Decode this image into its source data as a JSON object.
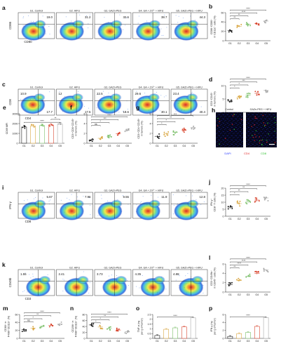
{
  "groups": [
    "G1. Control",
    "G2. HIFU",
    "G3. GAZn-PEG",
    "G4. GA + Zn²⁺ + HIFU",
    "G5. GAZn-PEG + HIFU"
  ],
  "short_groups": [
    "G1",
    "G2",
    "G3",
    "G4",
    "G5"
  ],
  "colors": {
    "group": [
      "#1a1a1a",
      "#d9a640",
      "#7cbf6a",
      "#d8452e",
      "#a8a8a8"
    ],
    "density": [
      "#1c2aa8",
      "#2f6de0",
      "#3fb6e6",
      "#7fe07a",
      "#f2e640",
      "#f08a2a",
      "#d62020"
    ]
  },
  "flow_rows": [
    {
      "label": "a",
      "xaxis": "CD80",
      "yaxis": "CD86",
      "values": [
        "19.0",
        "31.2",
        "32.6",
        "38.7",
        "44.3"
      ],
      "pos": "tr"
    },
    {
      "label": "c",
      "xaxis": "CD4",
      "yaxis": "CD8",
      "values": [
        [
          "10.9",
          "17.7"
        ],
        [
          "12",
          "17.5"
        ],
        [
          "22.5",
          "18.6"
        ],
        [
          "29.6",
          "30.1"
        ],
        [
          "23.4",
          "40.4"
        ]
      ],
      "pos": "tlbr"
    },
    {
      "label": "i",
      "xaxis": "CD8",
      "yaxis": "IFN-γ",
      "values": [
        "5.67",
        "7.96",
        "9.55",
        "11.9",
        "12.8"
      ],
      "pos": "tr"
    },
    {
      "label": "k",
      "xaxis": "CD3",
      "yaxis": "CD49b",
      "values": [
        "1.55",
        "2.41",
        "3.73",
        "4.35",
        "4.88"
      ],
      "pos": "tl"
    }
  ],
  "panel_h": {
    "label": "h",
    "titles": [
      "Control",
      "GAZn-PEG + HIFU"
    ],
    "legend": [
      {
        "text": "DAPI",
        "color": "#2a3cff"
      },
      {
        "text": "CD4",
        "color": "#e02020"
      },
      {
        "text": "CD8",
        "color": "#30c030"
      }
    ]
  },
  "chart_data": [
    {
      "label": "b",
      "type": "scatter",
      "categories": [
        "G1",
        "G2",
        "G3",
        "G4",
        "G5"
      ],
      "means": [
        22,
        31,
        35,
        37,
        42
      ],
      "spread": 4,
      "ylabel": [
        "CD86⁺CD80⁺",
        "in CD11c⁺ cells (%)"
      ],
      "yticks": [
        0,
        20,
        40,
        60
      ],
      "ylim": [
        0,
        60
      ],
      "sig": [
        {
          "a": 1,
          "b": 2,
          "text": "**"
        },
        {
          "a": 1,
          "b": 3,
          "text": "**"
        },
        {
          "a": 1,
          "b": 4,
          "text": "****"
        },
        {
          "a": 1,
          "b": 5,
          "text": "****"
        }
      ]
    },
    {
      "label": "d",
      "type": "scatter",
      "categories": [
        "G1",
        "G2",
        "G3",
        "G4",
        "G5"
      ],
      "means": [
        4.2,
        5.6,
        6.4,
        7.1,
        8.2
      ],
      "spread": 0.8,
      "ylabel": [
        "CD3⁺CD45⁺",
        "in tumors (%)"
      ],
      "yticks": [
        0,
        5,
        10
      ],
      "ylim": [
        0,
        10
      ],
      "sig": [
        {
          "a": 1,
          "b": 2,
          "text": "*"
        },
        {
          "a": 1,
          "b": 3,
          "text": "*"
        },
        {
          "a": 1,
          "b": 4,
          "text": "***"
        },
        {
          "a": 1,
          "b": 5,
          "text": "****"
        }
      ]
    },
    {
      "label": "e",
      "type": "bar",
      "categories": [
        "G1",
        "G2",
        "G3",
        "G4",
        "G5"
      ],
      "means": [
        1650,
        1750,
        1800,
        1850,
        1950
      ],
      "spread": 150,
      "ylabel": [
        "CD69 MFI"
      ],
      "yticks": [
        0,
        1000,
        2000,
        3000
      ],
      "ylim": [
        0,
        3000
      ],
      "sig": [
        {
          "a": 1,
          "b": 5,
          "text": "****"
        },
        {
          "a": 4,
          "b": 5,
          "text": "**"
        }
      ]
    },
    {
      "label": "f",
      "type": "scatter",
      "categories": [
        "G1",
        "G2",
        "G3",
        "G4",
        "G5"
      ],
      "means": [
        0.7,
        1.0,
        1.4,
        1.9,
        2.6
      ],
      "spread": 0.3,
      "ylabel": [
        "CD3⁺CD8⁺CD45⁺",
        "in tumors (%)"
      ],
      "yticks": [
        0,
        2,
        4,
        6
      ],
      "ylim": [
        0,
        6
      ],
      "sig": [
        {
          "a": 1,
          "b": 2,
          "text": "ns"
        },
        {
          "a": 1,
          "b": 3,
          "text": "*"
        },
        {
          "a": 1,
          "b": 4,
          "text": "***"
        },
        {
          "a": 1,
          "b": 5,
          "text": "****"
        }
      ]
    },
    {
      "label": "g",
      "type": "scatter",
      "categories": [
        "G1",
        "G2",
        "G3",
        "G4",
        "G5"
      ],
      "means": [
        1.4,
        1.9,
        2.2,
        2.6,
        3.2
      ],
      "spread": 0.5,
      "ylabel": [
        "CD3⁺CD4⁺CD45⁺",
        "in tumors (%)"
      ],
      "yticks": [
        0,
        2,
        4,
        6
      ],
      "ylim": [
        0,
        6
      ],
      "sig": [
        {
          "a": 1,
          "b": 2,
          "text": "*"
        },
        {
          "a": 1,
          "b": 3,
          "text": "*"
        },
        {
          "a": 1,
          "b": 4,
          "text": "**"
        },
        {
          "a": 1,
          "b": 5,
          "text": "***"
        }
      ]
    },
    {
      "label": "j",
      "type": "scatter",
      "categories": [
        "G1",
        "G2",
        "G3",
        "G4",
        "G5"
      ],
      "means": [
        6.5,
        9.0,
        10.5,
        11.5,
        13.0
      ],
      "spread": 2,
      "ylabel": [
        "IFN-γ⁺",
        "CD8⁺ T cells (%)"
      ],
      "yticks": [
        0,
        5,
        10,
        15,
        20
      ],
      "ylim": [
        0,
        20
      ],
      "sig": [
        {
          "a": 1,
          "b": 2,
          "text": "*"
        },
        {
          "a": 1,
          "b": 3,
          "text": "**"
        },
        {
          "a": 1,
          "b": 4,
          "text": "**"
        },
        {
          "a": 1,
          "b": 5,
          "text": "****"
        }
      ]
    },
    {
      "label": "l",
      "type": "scatter",
      "categories": [
        "G1",
        "G2",
        "G3",
        "G4",
        "G5"
      ],
      "means": [
        1.6,
        2.5,
        3.4,
        4.0,
        4.7
      ],
      "spread": 0.4,
      "ylabel": [
        "CD3⁻CD49b⁺",
        "in CD45⁺ cells (%)"
      ],
      "yticks": [
        0,
        2,
        4,
        6
      ],
      "ylim": [
        0,
        6
      ],
      "sig": [
        {
          "a": 1,
          "b": 2,
          "text": "**"
        },
        {
          "a": 1,
          "b": 3,
          "text": "****"
        },
        {
          "a": 1,
          "b": 4,
          "text": "****"
        },
        {
          "a": 1,
          "b": 5,
          "text": "****"
        }
      ]
    },
    {
      "label": "m",
      "type": "scatter",
      "categories": [
        "G1",
        "G2",
        "G3",
        "G4",
        "G5"
      ],
      "means": [
        22,
        26,
        30,
        33,
        36
      ],
      "spread": 5,
      "ylabel": [
        "CD80⁺ in",
        "F4/80⁺CD11b⁺ (%)"
      ],
      "yticks": [
        0,
        20,
        40,
        60
      ],
      "ylim": [
        0,
        60
      ],
      "sig": [
        {
          "a": 1,
          "b": 2,
          "text": "ns"
        },
        {
          "a": 1,
          "b": 3,
          "text": "*"
        },
        {
          "a": 1,
          "b": 4,
          "text": "**"
        },
        {
          "a": 1,
          "b": 5,
          "text": "****"
        }
      ]
    },
    {
      "label": "n",
      "type": "scatter",
      "categories": [
        "G1",
        "G2",
        "G3",
        "G4",
        "G5"
      ],
      "means": [
        45,
        38,
        33,
        28,
        22
      ],
      "spread": 6,
      "ylabel": [
        "CD206⁺ in",
        "F4/80⁺CD11b⁺ (%)"
      ],
      "yticks": [
        0,
        20,
        40,
        60,
        80
      ],
      "ylim": [
        0,
        80
      ],
      "sig": [
        {
          "a": 1,
          "b": 2,
          "text": "*"
        },
        {
          "a": 1,
          "b": 3,
          "text": "*"
        },
        {
          "a": 1,
          "b": 4,
          "text": "**"
        },
        {
          "a": 1,
          "b": 5,
          "text": "****"
        }
      ]
    },
    {
      "label": "o",
      "type": "bar",
      "categories": [
        "G1",
        "G2",
        "G3",
        "G4",
        "G5"
      ],
      "means": [
        0.3,
        0.95,
        1.1,
        1.2,
        2.15
      ],
      "spread": 0.08,
      "ylabel": [
        "TNF-α (ng",
        "per g of tumor)"
      ],
      "yticks": [
        0.0,
        0.5,
        1.0,
        1.5,
        2.0,
        2.5
      ],
      "ylim": [
        0,
        2.5
      ],
      "sig": [
        {
          "a": 1,
          "b": 5,
          "text": "****"
        }
      ]
    },
    {
      "label": "p",
      "type": "bar",
      "categories": [
        "G1",
        "G2",
        "G3",
        "G4",
        "G5"
      ],
      "means": [
        0.5,
        1.2,
        1.5,
        3.0,
        5.2
      ],
      "spread": 0.2,
      "ylabel": [
        "IFN-γ (ng",
        "per g of tumor)"
      ],
      "yticks": [
        0,
        2,
        4,
        6
      ],
      "ylim": [
        0,
        6
      ],
      "sig": [
        {
          "a": 1,
          "b": 5,
          "text": "****"
        }
      ]
    }
  ]
}
